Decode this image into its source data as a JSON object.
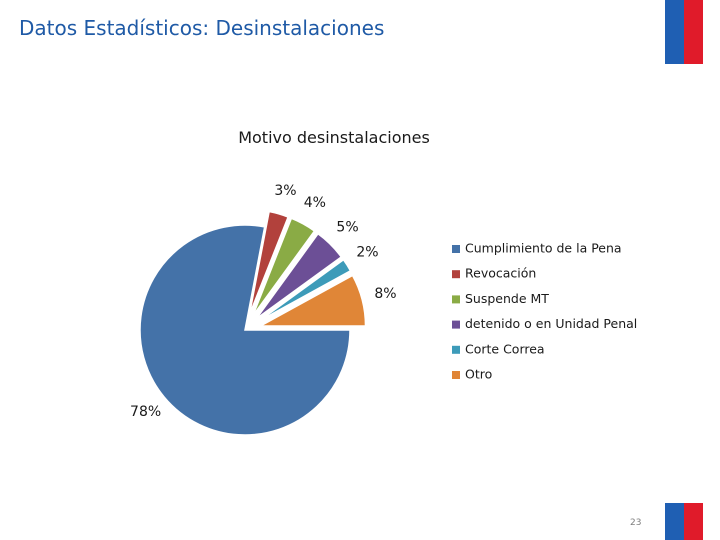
{
  "slide": {
    "title": "Datos Estadísticos: Desinstalaciones",
    "page_number": "23"
  },
  "colors": {
    "title": "#1f5aa6",
    "flag_blue": "#1f5fb3",
    "flag_red": "#e01b2a"
  },
  "chart_data": {
    "type": "pie",
    "title": "Motivo desinstalaciones",
    "exploded": true,
    "legend_position": "right",
    "slices": [
      {
        "name": "Cumplimiento de la Pena",
        "value": 78,
        "label": "78%",
        "color": "#4472a8"
      },
      {
        "name": "Revocación",
        "value": 3,
        "label": "3%",
        "color": "#b2413c"
      },
      {
        "name": "Suspende MT",
        "value": 4,
        "label": "4%",
        "color": "#8aab45"
      },
      {
        "name": "detenido o en Unidad Penal",
        "value": 5,
        "label": "5%",
        "color": "#6c4f96"
      },
      {
        "name": "Corte Correa",
        "value": 2,
        "label": "2%",
        "color": "#3d9bb9"
      },
      {
        "name": "Otro",
        "value": 8,
        "label": "8%",
        "color": "#e08637"
      }
    ]
  }
}
